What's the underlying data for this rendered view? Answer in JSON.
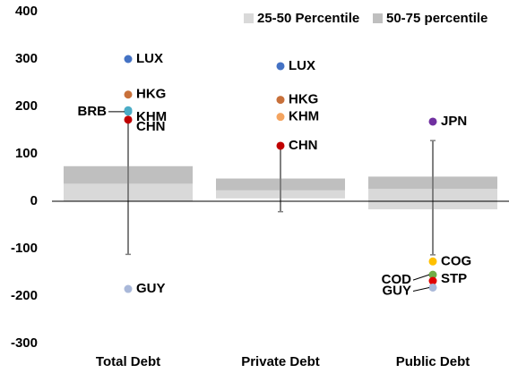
{
  "chart_data": {
    "type": "box",
    "categories": [
      "Total Debt",
      "Private Debt",
      "Public Debt"
    ],
    "series": [
      {
        "name": "25-50 Percentile",
        "color": "#d9d9d9"
      },
      {
        "name": "50-75 percentile",
        "color": "#bfbfbf"
      }
    ],
    "boxes": [
      {
        "whisker_low": -112,
        "p25": 0,
        "p50": 37,
        "p75": 74,
        "whisker_high": 170
      },
      {
        "whisker_low": -22,
        "p25": 6,
        "p50": 23,
        "p75": 48,
        "whisker_high": 117
      },
      {
        "whisker_low": -113,
        "p25": -17,
        "p50": 26,
        "p75": 52,
        "whisker_high": 128
      }
    ],
    "outliers": [
      [
        {
          "label": "LUX",
          "value": 300,
          "color": "#4472c4"
        },
        {
          "label": "HKG",
          "value": 225,
          "color": "#c8703a"
        },
        {
          "label": "KHM",
          "value": 192,
          "color": "#4bacc6"
        },
        {
          "label": "BRB",
          "value": 189,
          "color": "#4bacc6"
        },
        {
          "label": "CHN",
          "value": 172,
          "color": "#c00000"
        },
        {
          "label": "GUY",
          "value": -185,
          "color": "#a9b8d9"
        }
      ],
      [
        {
          "label": "LUX",
          "value": 285,
          "color": "#4472c4"
        },
        {
          "label": "HKG",
          "value": 214,
          "color": "#c8703a"
        },
        {
          "label": "KHM",
          "value": 178,
          "color": "#f4a460"
        },
        {
          "label": "CHN",
          "value": 117,
          "color": "#c00000"
        }
      ],
      [
        {
          "label": "JPN",
          "value": 168,
          "color": "#7030a0"
        },
        {
          "label": "COG",
          "value": -127,
          "color": "#ffc000"
        },
        {
          "label": "COD",
          "value": -155,
          "color": "#70ad47"
        },
        {
          "label": "STP",
          "value": -168,
          "color": "#e00000"
        },
        {
          "label": "GUY",
          "value": -182,
          "color": "#a9b8d9"
        }
      ]
    ],
    "ylim": [
      -300,
      400
    ],
    "yticks": [
      -300,
      -200,
      -100,
      0,
      100,
      200,
      300,
      400
    ]
  }
}
